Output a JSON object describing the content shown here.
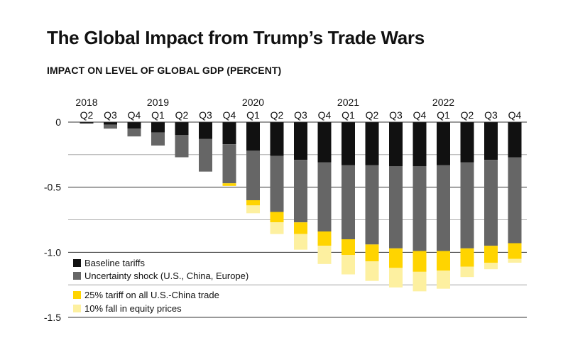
{
  "chart_data": {
    "type": "bar",
    "stacked": true,
    "title": "The Global Impact from Trump’s Trade Wars",
    "subtitle": "IMPACT ON LEVEL OF GLOBAL GDP (PERCENT)",
    "ylim": [
      -1.5,
      0
    ],
    "yticks": [
      0,
      -0.5,
      -1.0,
      -1.5
    ],
    "ytick_labels": [
      "0",
      "-0.5",
      "-1.0",
      "-1.5"
    ],
    "grid": true,
    "years": [
      {
        "label": "2018",
        "start": 0
      },
      {
        "label": "2019",
        "start": 3
      },
      {
        "label": "2020",
        "start": 7
      },
      {
        "label": "2021",
        "start": 11
      },
      {
        "label": "2022",
        "start": 15
      }
    ],
    "categories": [
      "Q2",
      "Q3",
      "Q4",
      "Q1",
      "Q2",
      "Q3",
      "Q4",
      "Q1",
      "Q2",
      "Q3",
      "Q4",
      "Q1",
      "Q2",
      "Q3",
      "Q4",
      "Q1",
      "Q2",
      "Q3",
      "Q4"
    ],
    "series": [
      {
        "name": "Baseline tariffs",
        "color": "#111111",
        "values": [
          -0.01,
          -0.02,
          -0.05,
          -0.08,
          -0.1,
          -0.13,
          -0.17,
          -0.22,
          -0.26,
          -0.29,
          -0.31,
          -0.33,
          -0.33,
          -0.34,
          -0.34,
          -0.33,
          -0.31,
          -0.29,
          -0.27
        ]
      },
      {
        "name": "Uncertainty shock (U.S., China, Europe)",
        "color": "#666666",
        "values": [
          0,
          -0.03,
          -0.06,
          -0.1,
          -0.17,
          -0.25,
          -0.3,
          -0.38,
          -0.43,
          -0.48,
          -0.53,
          -0.57,
          -0.61,
          -0.63,
          -0.65,
          -0.66,
          -0.66,
          -0.66,
          -0.66
        ]
      },
      {
        "name": "25% tariff on all U.S.-China trade",
        "color": "#ffd400",
        "values": [
          0,
          0,
          0,
          0,
          0,
          0,
          -0.02,
          -0.04,
          -0.08,
          -0.09,
          -0.11,
          -0.12,
          -0.13,
          -0.15,
          -0.16,
          -0.15,
          -0.14,
          -0.13,
          -0.12
        ]
      },
      {
        "name": "10% fall in equity prices",
        "color": "#fdf0a0",
        "values": [
          0,
          0,
          0,
          0,
          0,
          0,
          0,
          -0.06,
          -0.09,
          -0.12,
          -0.14,
          -0.15,
          -0.15,
          -0.15,
          -0.15,
          -0.14,
          -0.08,
          -0.05,
          -0.03
        ]
      }
    ],
    "legend_position": "bottom-left"
  }
}
